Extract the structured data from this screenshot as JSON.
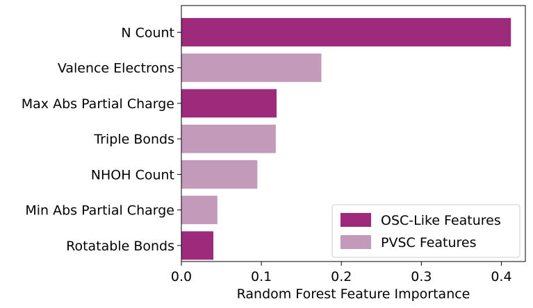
{
  "chart_data": {
    "type": "bar",
    "orientation": "horizontal",
    "categories": [
      "N Count",
      "Valence Electrons",
      "Max Abs Partial Charge",
      "Triple Bonds",
      "NHOH Count",
      "Min Abs Partial Charge",
      "Rotatable Bonds"
    ],
    "values": [
      0.412,
      0.175,
      0.119,
      0.118,
      0.095,
      0.045,
      0.04
    ],
    "groups": [
      "OSC-Like Features",
      "PVSC Features",
      "OSC-Like Features",
      "PVSC Features",
      "PVSC Features",
      "PVSC Features",
      "OSC-Like Features"
    ],
    "xlabel": "Random Forest Feature Importance",
    "ylabel": "",
    "xlim": [
      0,
      0.43
    ],
    "xticks": [
      "0.0",
      "0.1",
      "0.2",
      "0.3",
      "0.4"
    ],
    "grid": false,
    "legend": {
      "placement": "lower-right",
      "entries": [
        {
          "name": "OSC-Like Features",
          "color": "#9d2a7b"
        },
        {
          "name": "PVSC Features",
          "color": "#c49aba"
        }
      ]
    }
  }
}
